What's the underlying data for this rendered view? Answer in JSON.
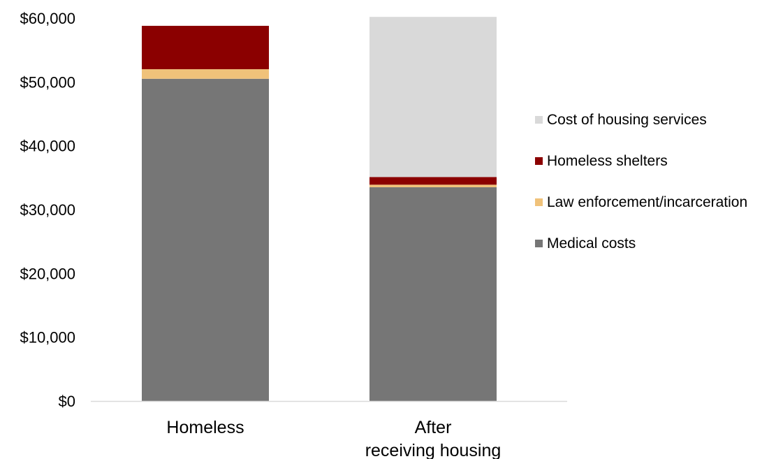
{
  "chart_data": {
    "type": "bar",
    "stacked": true,
    "title": "",
    "xlabel": "",
    "ylabel": "",
    "ylim": [
      0,
      60000
    ],
    "y_ticks": [
      0,
      10000,
      20000,
      30000,
      40000,
      50000,
      60000
    ],
    "y_tick_labels": [
      "$0",
      "$10,000",
      "$20,000",
      "$30,000",
      "$40,000",
      "$50,000",
      "$60,000"
    ],
    "grid": false,
    "legend_position": "right",
    "categories": [
      "Homeless",
      "After receiving housing"
    ],
    "category_labels": [
      [
        "Homeless"
      ],
      [
        "After",
        "receiving housing"
      ]
    ],
    "series": [
      {
        "name": "Medical costs",
        "color": "#767676",
        "values": [
          50500,
          33500
        ]
      },
      {
        "name": "Law enforcement/incarceration",
        "color": "#f0c27a",
        "values": [
          1500,
          400
        ]
      },
      {
        "name": "Homeless shelters",
        "color": "#8b0000",
        "values": [
          6800,
          1200
        ]
      },
      {
        "name": "Cost of housing services",
        "color": "#d9d9d9",
        "values": [
          0,
          25100
        ]
      }
    ],
    "legend_order": [
      "Cost of housing services",
      "Homeless shelters",
      "Law enforcement/incarceration",
      "Medical costs"
    ]
  }
}
